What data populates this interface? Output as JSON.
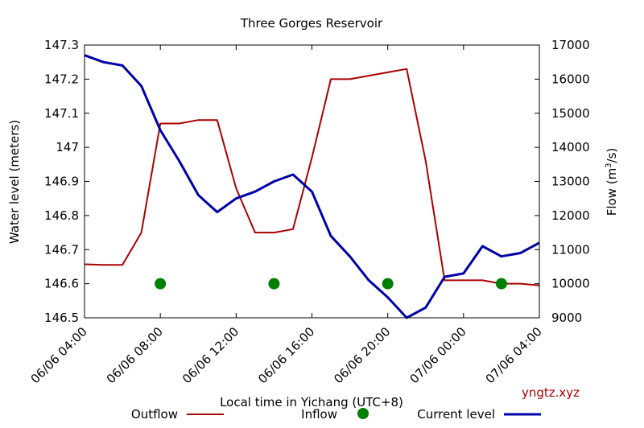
{
  "chart_data": {
    "type": "line",
    "title": "Three Gorges Reservoir",
    "xlabel": "Local time in Yichang (UTC+8)",
    "ylabel_left": "Water level (meters)",
    "ylabel_right_prefix": "Flow (m",
    "ylabel_right_sup": "3",
    "ylabel_right_suffix": "/s)",
    "x_unit": "hours since 06/06 04:00",
    "x_ticks": [
      {
        "h": 0,
        "label": "06/06 04:00"
      },
      {
        "h": 4,
        "label": "06/06 08:00"
      },
      {
        "h": 8,
        "label": "06/06 12:00"
      },
      {
        "h": 12,
        "label": "06/06 16:00"
      },
      {
        "h": 16,
        "label": "06/06 20:00"
      },
      {
        "h": 20,
        "label": "07/06 00:00"
      },
      {
        "h": 24,
        "label": "07/06 04:00"
      }
    ],
    "xlim": [
      0,
      24
    ],
    "ylim_left": [
      146.5,
      147.3
    ],
    "ylim_right": [
      9000,
      17000
    ],
    "left_ticks": [
      "146.5",
      "146.6",
      "146.7",
      "146.8",
      "146.9",
      "147",
      "147.1",
      "147.2",
      "147.3"
    ],
    "right_ticks": [
      "9000",
      "10000",
      "11000",
      "12000",
      "13000",
      "14000",
      "15000",
      "16000",
      "17000"
    ],
    "series": [
      {
        "name": "Outflow",
        "axis": "right",
        "color": "#aa0000",
        "style": "line",
        "x": [
          0,
          1,
          2,
          3,
          4,
          5,
          6,
          7,
          8,
          9,
          10,
          11,
          12,
          13,
          14,
          15,
          16,
          17,
          18,
          19,
          20,
          21,
          22,
          23,
          24
        ],
        "y": [
          10570,
          10550,
          10550,
          11500,
          14700,
          14700,
          14800,
          14800,
          12800,
          11500,
          11500,
          11600,
          13700,
          16000,
          16000,
          16100,
          16200,
          16300,
          13600,
          10100,
          10100,
          10100,
          10000,
          10000,
          9950
        ]
      },
      {
        "name": "Inflow",
        "axis": "right",
        "color": "#008000",
        "style": "points",
        "x": [
          4,
          10,
          16,
          22
        ],
        "y": [
          10000,
          10000,
          10000,
          10000
        ]
      },
      {
        "name": "Current level",
        "axis": "left",
        "color": "#0000aa",
        "style": "line",
        "x": [
          0,
          1,
          2,
          3,
          4,
          5,
          6,
          7,
          8,
          9,
          10,
          11,
          12,
          13,
          14,
          15,
          16,
          17,
          18,
          19,
          20,
          21,
          22,
          23,
          24
        ],
        "y": [
          147.27,
          147.25,
          147.24,
          147.18,
          147.05,
          146.96,
          146.86,
          146.81,
          146.85,
          146.87,
          146.9,
          146.92,
          146.87,
          146.74,
          146.68,
          146.61,
          146.56,
          146.5,
          146.53,
          146.62,
          146.63,
          146.71,
          146.68,
          146.69,
          146.72
        ]
      }
    ],
    "legend_placement": "bottom",
    "grid": false
  },
  "watermark": "yngtz.xyz",
  "colors": {
    "watermark": "#aa0000",
    "axis": "#000000"
  }
}
